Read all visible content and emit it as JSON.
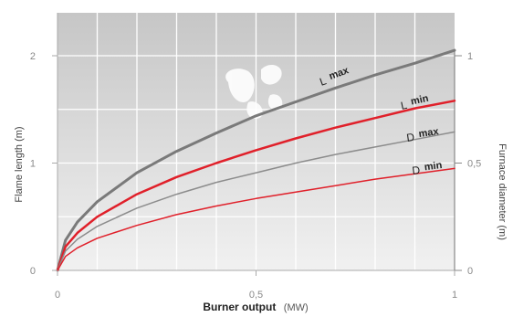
{
  "chart_data": {
    "type": "line",
    "xlabel": {
      "main": "Burner output",
      "unit": "(MW)"
    },
    "ylabel_left": "Flame length  (m)",
    "ylabel_right": "Furnace diameter  (m)",
    "xlim": [
      0,
      1
    ],
    "ylim_left": [
      0,
      2.4
    ],
    "ylim_right": [
      0,
      1.2
    ],
    "grid": true,
    "x_ticks": [
      {
        "value": 0,
        "label": "0"
      },
      {
        "value": 0.5,
        "label": "0,5"
      },
      {
        "value": 1,
        "label": "1"
      }
    ],
    "y_ticks_left": [
      {
        "value": 0,
        "label": "0"
      },
      {
        "value": 1,
        "label": "1"
      },
      {
        "value": 2,
        "label": "2"
      }
    ],
    "y_ticks_right": [
      {
        "value": 0,
        "label": "0"
      },
      {
        "value": 0.5,
        "label": "0,5"
      },
      {
        "value": 1,
        "label": "1"
      }
    ],
    "series": [
      {
        "name": "max",
        "prefix": "L",
        "axis": "left",
        "color": "#7a7a7a",
        "width": 3,
        "x": [
          0,
          0.02,
          0.05,
          0.1,
          0.2,
          0.3,
          0.4,
          0.5,
          0.6,
          0.7,
          0.8,
          0.9,
          1
        ],
        "y": [
          0,
          0.28,
          0.45,
          0.64,
          0.91,
          1.11,
          1.28,
          1.44,
          1.57,
          1.7,
          1.82,
          1.93,
          2.05
        ]
      },
      {
        "name": "min",
        "prefix": "L",
        "axis": "left",
        "color": "#e0202a",
        "width": 2.5,
        "x": [
          0,
          0.02,
          0.05,
          0.1,
          0.2,
          0.3,
          0.4,
          0.5,
          0.6,
          0.7,
          0.8,
          0.9,
          1
        ],
        "y": [
          0,
          0.22,
          0.35,
          0.5,
          0.71,
          0.87,
          1.0,
          1.12,
          1.23,
          1.33,
          1.42,
          1.51,
          1.58
        ]
      },
      {
        "name": "max",
        "prefix": "D",
        "axis": "left",
        "color": "#8c8c8c",
        "width": 1.5,
        "x": [
          0,
          0.02,
          0.05,
          0.1,
          0.2,
          0.3,
          0.4,
          0.5,
          0.6,
          0.7,
          0.8,
          0.9,
          1
        ],
        "y": [
          0,
          0.18,
          0.29,
          0.41,
          0.58,
          0.71,
          0.82,
          0.91,
          1.0,
          1.08,
          1.15,
          1.22,
          1.29
        ]
      },
      {
        "name": "min",
        "prefix": "D",
        "axis": "left",
        "color": "#e0202a",
        "width": 1.5,
        "x": [
          0,
          0.02,
          0.05,
          0.1,
          0.2,
          0.3,
          0.4,
          0.5,
          0.6,
          0.7,
          0.8,
          0.9,
          1
        ],
        "y": [
          0,
          0.13,
          0.21,
          0.3,
          0.42,
          0.52,
          0.6,
          0.67,
          0.73,
          0.79,
          0.85,
          0.9,
          0.95
        ]
      }
    ]
  }
}
